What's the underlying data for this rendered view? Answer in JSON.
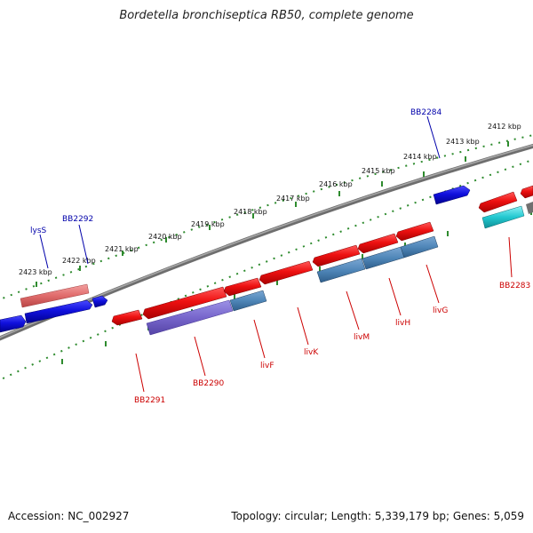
{
  "title": "Bordetella bronchiseptica RB50, complete genome",
  "footer": {
    "accession": "Accession: NC_002927",
    "topology": "Topology: circular; Length: 5,339,179 bp; Genes: 5,059"
  },
  "colors": {
    "backbone": "#808080",
    "tick": "#2e8b2e",
    "forward_label": "#0000aa",
    "reverse_label": "#cc0000",
    "red_gene": "#ee1111",
    "blue_gene": "#1010dd",
    "steel_gene": "#4f86b8",
    "cyan_gene": "#22c8d0",
    "violet_gene": "#7766cc",
    "pink_gene": "#e06b6b"
  },
  "scale_ticks": [
    {
      "label": "2423 kbp"
    },
    {
      "label": "2422 kbp"
    },
    {
      "label": "2421 kbp"
    },
    {
      "label": "2420 kbp"
    },
    {
      "label": "2419 kbp"
    },
    {
      "label": "2418 kbp"
    },
    {
      "label": "2417 kbp"
    },
    {
      "label": "2416 kbp"
    },
    {
      "label": "2415 kbp"
    },
    {
      "label": "2414 kbp"
    },
    {
      "label": "2413 kbp"
    },
    {
      "label": "2412 kbp"
    }
  ],
  "gene_labels": [
    {
      "name": "lysS",
      "strand": "forward"
    },
    {
      "name": "BB2292",
      "strand": "forward"
    },
    {
      "name": "BB2284",
      "strand": "forward"
    },
    {
      "name": "BB2291",
      "strand": "reverse"
    },
    {
      "name": "BB2290",
      "strand": "reverse"
    },
    {
      "name": "livF",
      "strand": "reverse"
    },
    {
      "name": "livK",
      "strand": "reverse"
    },
    {
      "name": "livM",
      "strand": "reverse"
    },
    {
      "name": "livH",
      "strand": "reverse"
    },
    {
      "name": "livG",
      "strand": "reverse"
    },
    {
      "name": "BB2283",
      "strand": "reverse"
    }
  ]
}
